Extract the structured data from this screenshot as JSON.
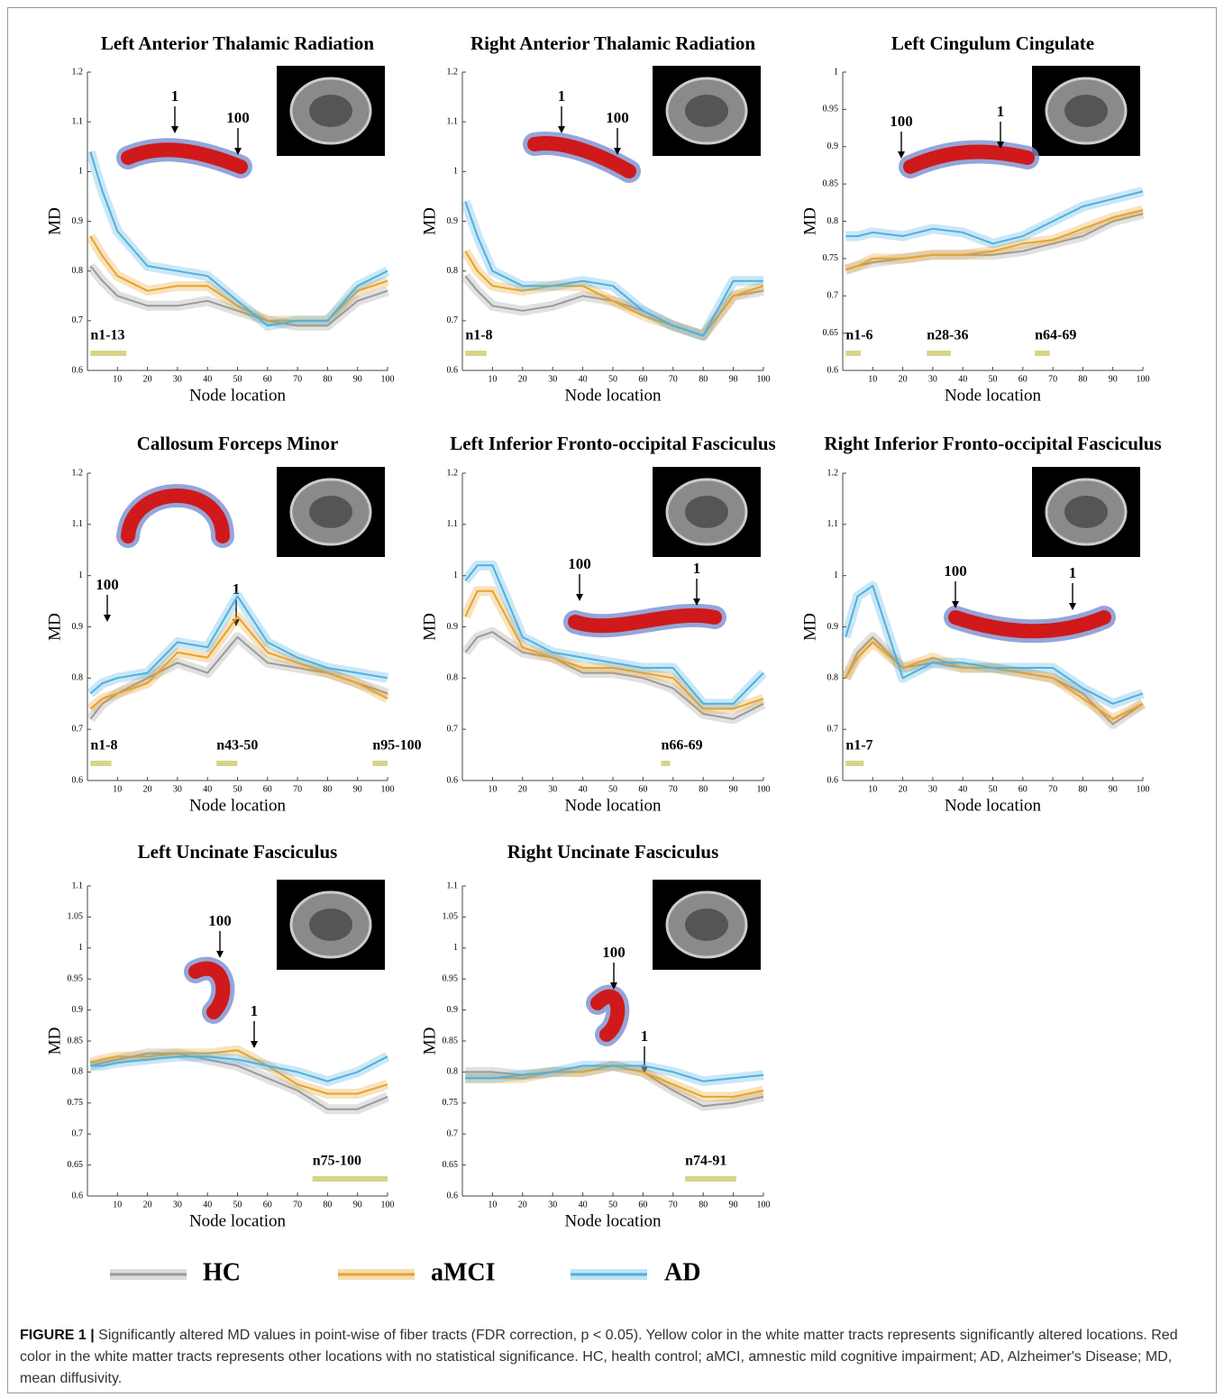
{
  "chart_data": [
    {
      "type": "line",
      "title": "Left Anterior Thalamic Radiation",
      "xlabel": "Node location",
      "ylabel": "MD",
      "x": [
        1,
        5,
        10,
        20,
        30,
        40,
        50,
        60,
        70,
        80,
        90,
        100
      ],
      "xlim": [
        0,
        100
      ],
      "xticks": [
        10,
        20,
        30,
        40,
        50,
        60,
        70,
        80,
        90,
        100
      ],
      "ylim": [
        0.6,
        1.2
      ],
      "yticks": [
        0.6,
        0.7,
        0.8,
        0.9,
        1,
        1.1,
        1.2
      ],
      "series": [
        {
          "name": "HC",
          "color": "#9a9a9a",
          "values": [
            0.81,
            0.78,
            0.75,
            0.73,
            0.73,
            0.74,
            0.72,
            0.7,
            0.69,
            0.69,
            0.74,
            0.76
          ]
        },
        {
          "name": "aMCI",
          "color": "#e8a22a",
          "values": [
            0.87,
            0.83,
            0.79,
            0.76,
            0.77,
            0.77,
            0.73,
            0.7,
            0.7,
            0.7,
            0.76,
            0.78
          ]
        },
        {
          "name": "AD",
          "color": "#4fb0e0",
          "values": [
            1.04,
            0.96,
            0.88,
            0.81,
            0.8,
            0.79,
            0.74,
            0.69,
            0.7,
            0.7,
            0.77,
            0.8
          ]
        }
      ],
      "significant": [
        {
          "label": "n1-13",
          "from": 1,
          "to": 13
        }
      ],
      "tract_labels": [
        "1",
        "100"
      ]
    },
    {
      "type": "line",
      "title": "Right Anterior Thalamic Radiation",
      "xlabel": "Node location",
      "ylabel": "MD",
      "x": [
        1,
        5,
        10,
        20,
        30,
        40,
        50,
        60,
        70,
        80,
        90,
        100
      ],
      "xlim": [
        0,
        100
      ],
      "xticks": [
        10,
        20,
        30,
        40,
        50,
        60,
        70,
        80,
        90,
        100
      ],
      "ylim": [
        0.6,
        1.2
      ],
      "yticks": [
        0.6,
        0.7,
        0.8,
        0.9,
        1,
        1.1,
        1.2
      ],
      "series": [
        {
          "name": "HC",
          "color": "#9a9a9a",
          "values": [
            0.79,
            0.76,
            0.73,
            0.72,
            0.73,
            0.75,
            0.74,
            0.72,
            0.69,
            0.67,
            0.75,
            0.76
          ]
        },
        {
          "name": "aMCI",
          "color": "#e8a22a",
          "values": [
            0.84,
            0.8,
            0.77,
            0.76,
            0.77,
            0.77,
            0.74,
            0.71,
            0.69,
            0.67,
            0.75,
            0.77
          ]
        },
        {
          "name": "AD",
          "color": "#4fb0e0",
          "values": [
            0.94,
            0.87,
            0.8,
            0.77,
            0.77,
            0.78,
            0.77,
            0.72,
            0.69,
            0.67,
            0.78,
            0.78
          ]
        }
      ],
      "significant": [
        {
          "label": "n1-8",
          "from": 1,
          "to": 8
        }
      ],
      "tract_labels": [
        "1",
        "100"
      ]
    },
    {
      "type": "line",
      "title": "Left Cingulum Cingulate",
      "xlabel": "Node location",
      "ylabel": "MD",
      "x": [
        1,
        5,
        10,
        20,
        30,
        40,
        50,
        60,
        70,
        80,
        90,
        100
      ],
      "xlim": [
        0,
        100
      ],
      "xticks": [
        10,
        20,
        30,
        40,
        50,
        60,
        70,
        80,
        90,
        100
      ],
      "ylim": [
        0.6,
        1
      ],
      "yticks": [
        0.6,
        0.65,
        0.7,
        0.75,
        0.8,
        0.85,
        0.9,
        0.95,
        1
      ],
      "series": [
        {
          "name": "HC",
          "color": "#9a9a9a",
          "values": [
            0.735,
            0.74,
            0.745,
            0.75,
            0.755,
            0.755,
            0.755,
            0.76,
            0.77,
            0.78,
            0.8,
            0.81
          ]
        },
        {
          "name": "aMCI",
          "color": "#e8a22a",
          "values": [
            0.735,
            0.74,
            0.75,
            0.75,
            0.755,
            0.755,
            0.76,
            0.77,
            0.775,
            0.79,
            0.805,
            0.815
          ]
        },
        {
          "name": "AD",
          "color": "#4fb0e0",
          "values": [
            0.78,
            0.78,
            0.785,
            0.78,
            0.79,
            0.785,
            0.77,
            0.78,
            0.8,
            0.82,
            0.83,
            0.84
          ]
        }
      ],
      "significant": [
        {
          "label": "n1-6",
          "from": 1,
          "to": 6
        },
        {
          "label": "n28-36",
          "from": 28,
          "to": 36
        },
        {
          "label": "n64-69",
          "from": 64,
          "to": 69
        }
      ],
      "tract_labels": [
        "100",
        "1"
      ]
    },
    {
      "type": "line",
      "title": "Callosum Forceps Minor",
      "xlabel": "Node location",
      "ylabel": "MD",
      "x": [
        1,
        5,
        10,
        20,
        30,
        40,
        50,
        60,
        70,
        80,
        90,
        100
      ],
      "xlim": [
        0,
        100
      ],
      "xticks": [
        10,
        20,
        30,
        40,
        50,
        60,
        70,
        80,
        90,
        100
      ],
      "ylim": [
        0.6,
        1.2
      ],
      "yticks": [
        0.6,
        0.7,
        0.8,
        0.9,
        1,
        1.1,
        1.2
      ],
      "series": [
        {
          "name": "HC",
          "color": "#9a9a9a",
          "values": [
            0.72,
            0.75,
            0.77,
            0.8,
            0.83,
            0.81,
            0.88,
            0.83,
            0.82,
            0.81,
            0.79,
            0.77
          ]
        },
        {
          "name": "aMCI",
          "color": "#e8a22a",
          "values": [
            0.74,
            0.76,
            0.77,
            0.79,
            0.85,
            0.84,
            0.92,
            0.85,
            0.83,
            0.81,
            0.79,
            0.76
          ]
        },
        {
          "name": "AD",
          "color": "#4fb0e0",
          "values": [
            0.77,
            0.79,
            0.8,
            0.81,
            0.87,
            0.86,
            0.96,
            0.87,
            0.84,
            0.82,
            0.81,
            0.8
          ]
        }
      ],
      "significant": [
        {
          "label": "n1-8",
          "from": 1,
          "to": 8
        },
        {
          "label": "n43-50",
          "from": 43,
          "to": 50
        },
        {
          "label": "n95-100",
          "from": 95,
          "to": 100
        }
      ],
      "tract_labels": [
        "100",
        "1"
      ]
    },
    {
      "type": "line",
      "title": "Left Inferior Fronto-occipital Fasciculus",
      "xlabel": "Node location",
      "ylabel": "MD",
      "x": [
        1,
        5,
        10,
        20,
        30,
        40,
        50,
        60,
        70,
        80,
        90,
        100
      ],
      "xlim": [
        0,
        100
      ],
      "xticks": [
        10,
        20,
        30,
        40,
        50,
        60,
        70,
        80,
        90,
        100
      ],
      "ylim": [
        0.6,
        1.2
      ],
      "yticks": [
        0.6,
        0.7,
        0.8,
        0.9,
        1,
        1.1,
        1.2
      ],
      "series": [
        {
          "name": "HC",
          "color": "#9a9a9a",
          "values": [
            0.85,
            0.88,
            0.89,
            0.85,
            0.84,
            0.81,
            0.81,
            0.8,
            0.78,
            0.73,
            0.72,
            0.75
          ]
        },
        {
          "name": "aMCI",
          "color": "#e8a22a",
          "values": [
            0.92,
            0.97,
            0.97,
            0.86,
            0.84,
            0.82,
            0.82,
            0.81,
            0.8,
            0.74,
            0.74,
            0.76
          ]
        },
        {
          "name": "AD",
          "color": "#4fb0e0",
          "values": [
            0.99,
            1.02,
            1.02,
            0.88,
            0.85,
            0.84,
            0.83,
            0.82,
            0.82,
            0.75,
            0.75,
            0.81
          ]
        }
      ],
      "significant": [
        {
          "label": "n66-69",
          "from": 66,
          "to": 69
        }
      ],
      "tract_labels": [
        "100",
        "1"
      ]
    },
    {
      "type": "line",
      "title": "Right Inferior Fronto-occipital Fasciculus",
      "xlabel": "Node location",
      "ylabel": "MD",
      "x": [
        1,
        5,
        10,
        20,
        30,
        40,
        50,
        60,
        70,
        80,
        90,
        100
      ],
      "xlim": [
        0,
        100
      ],
      "xticks": [
        10,
        20,
        30,
        40,
        50,
        60,
        70,
        80,
        90,
        100
      ],
      "ylim": [
        0.6,
        1.2
      ],
      "yticks": [
        0.6,
        0.7,
        0.8,
        0.9,
        1,
        1.1,
        1.2
      ],
      "series": [
        {
          "name": "HC",
          "color": "#9a9a9a",
          "values": [
            0.8,
            0.85,
            0.88,
            0.82,
            0.83,
            0.82,
            0.82,
            0.81,
            0.8,
            0.77,
            0.71,
            0.75
          ]
        },
        {
          "name": "aMCI",
          "color": "#e8a22a",
          "values": [
            0.8,
            0.84,
            0.87,
            0.82,
            0.84,
            0.82,
            0.82,
            0.81,
            0.8,
            0.76,
            0.72,
            0.75
          ]
        },
        {
          "name": "AD",
          "color": "#4fb0e0",
          "values": [
            0.88,
            0.96,
            0.98,
            0.8,
            0.83,
            0.83,
            0.82,
            0.82,
            0.82,
            0.78,
            0.75,
            0.77
          ]
        }
      ],
      "significant": [
        {
          "label": "n1-7",
          "from": 1,
          "to": 7
        }
      ],
      "tract_labels": [
        "100",
        "1"
      ]
    },
    {
      "type": "line",
      "title": "Left Uncinate Fasciculus",
      "xlabel": "Node location",
      "ylabel": "MD",
      "x": [
        1,
        5,
        10,
        20,
        30,
        40,
        50,
        60,
        70,
        80,
        90,
        100
      ],
      "xlim": [
        0,
        100
      ],
      "xticks": [
        10,
        20,
        30,
        40,
        50,
        60,
        70,
        80,
        90,
        100
      ],
      "ylim": [
        0.6,
        1.1
      ],
      "yticks": [
        0.6,
        0.65,
        0.7,
        0.75,
        0.8,
        0.85,
        0.9,
        0.95,
        1,
        1.05,
        1.1
      ],
      "series": [
        {
          "name": "HC",
          "color": "#9a9a9a",
          "values": [
            0.81,
            0.815,
            0.82,
            0.83,
            0.83,
            0.82,
            0.81,
            0.79,
            0.77,
            0.74,
            0.74,
            0.76
          ]
        },
        {
          "name": "aMCI",
          "color": "#e8a22a",
          "values": [
            0.815,
            0.82,
            0.825,
            0.825,
            0.83,
            0.83,
            0.835,
            0.81,
            0.78,
            0.765,
            0.765,
            0.78
          ]
        },
        {
          "name": "AD",
          "color": "#4fb0e0",
          "values": [
            0.81,
            0.81,
            0.815,
            0.82,
            0.825,
            0.825,
            0.82,
            0.81,
            0.8,
            0.785,
            0.8,
            0.825
          ]
        }
      ],
      "significant": [
        {
          "label": "n75-100",
          "from": 75,
          "to": 100
        }
      ],
      "tract_labels": [
        "100",
        "1"
      ]
    },
    {
      "type": "line",
      "title": "Right Uncinate Fasciculus",
      "xlabel": "Node location",
      "ylabel": "MD",
      "x": [
        1,
        5,
        10,
        20,
        30,
        40,
        50,
        60,
        70,
        80,
        90,
        100
      ],
      "xlim": [
        0,
        100
      ],
      "xticks": [
        10,
        20,
        30,
        40,
        50,
        60,
        70,
        80,
        90,
        100
      ],
      "ylim": [
        0.6,
        1.1
      ],
      "yticks": [
        0.6,
        0.65,
        0.7,
        0.75,
        0.8,
        0.85,
        0.9,
        0.95,
        1,
        1.05,
        1.1
      ],
      "series": [
        {
          "name": "HC",
          "color": "#9a9a9a",
          "values": [
            0.8,
            0.8,
            0.8,
            0.795,
            0.8,
            0.8,
            0.81,
            0.8,
            0.77,
            0.745,
            0.75,
            0.76
          ]
        },
        {
          "name": "aMCI",
          "color": "#e8a22a",
          "values": [
            0.79,
            0.79,
            0.79,
            0.79,
            0.8,
            0.8,
            0.81,
            0.8,
            0.78,
            0.76,
            0.76,
            0.77
          ]
        },
        {
          "name": "AD",
          "color": "#4fb0e0",
          "values": [
            0.79,
            0.79,
            0.79,
            0.795,
            0.8,
            0.81,
            0.81,
            0.81,
            0.8,
            0.785,
            0.79,
            0.795
          ]
        }
      ],
      "significant": [
        {
          "label": "n74-91",
          "from": 74,
          "to": 91
        }
      ],
      "tract_labels": [
        "100",
        "1"
      ]
    }
  ],
  "caption": {
    "label": "FIGURE 1 |",
    "text": "Significantly altered MD values in point-wise of fiber tracts (FDR correction, p < 0.05). Yellow color in the white matter tracts represents significantly altered locations. Red color in the white matter tracts represents other locations with no statistical significance. HC, health control; aMCI, amnestic mild cognitive impairment; AD, Alzheimer's Disease; MD, mean diffusivity."
  }
}
